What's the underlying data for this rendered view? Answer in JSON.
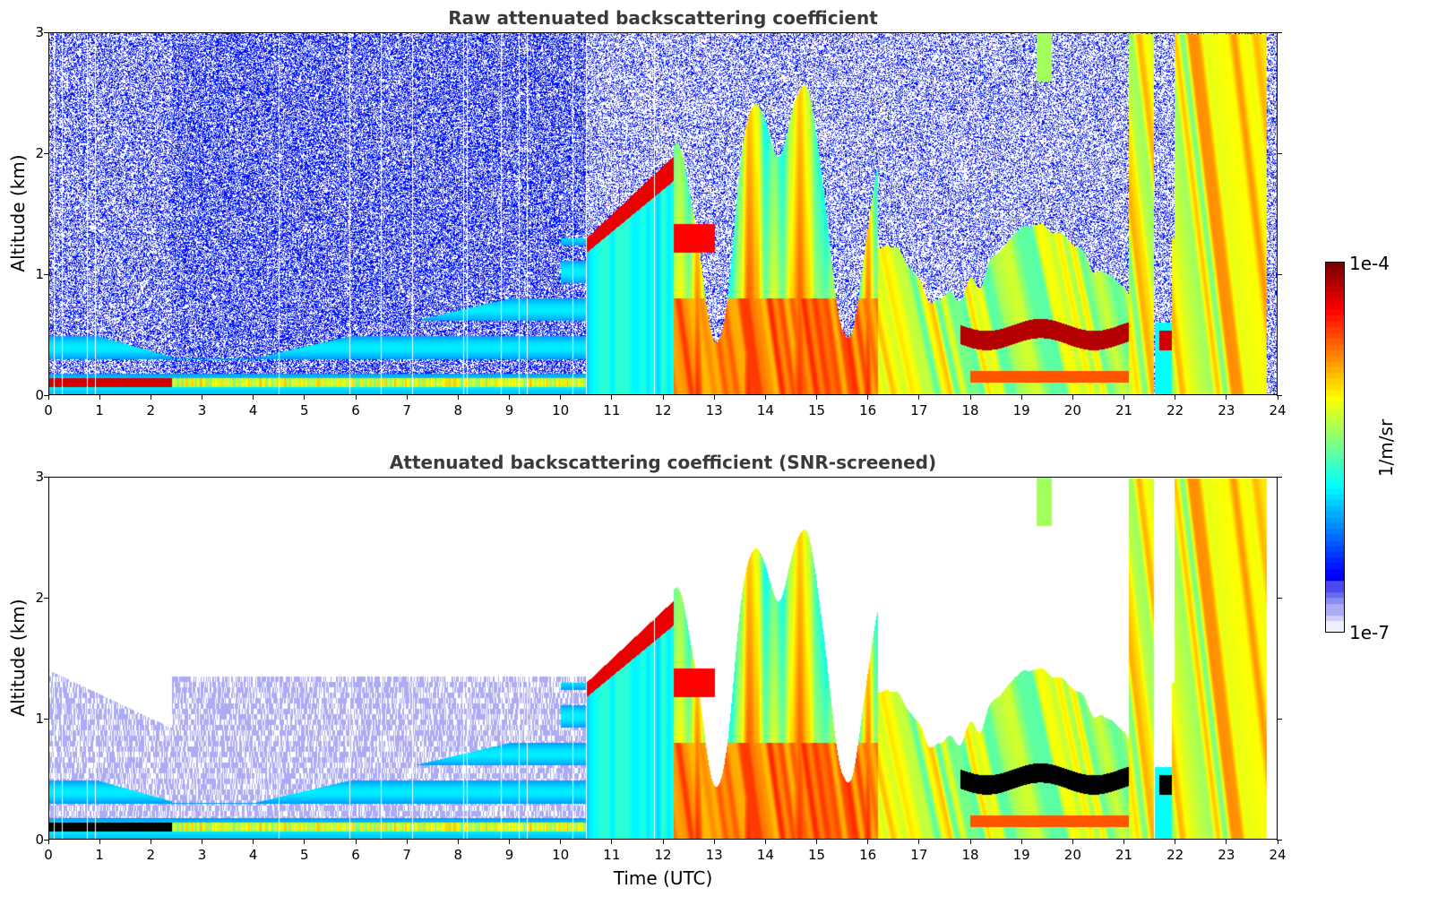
{
  "chart_data": [
    {
      "type": "heatmap",
      "title": "Raw attenuated backscattering coefficient",
      "xlabel": "",
      "ylabel": "Altitude (km)",
      "xlim": [
        0,
        24
      ],
      "ylim": [
        0,
        3
      ],
      "xticks": [
        "0",
        "1",
        "2",
        "3",
        "4",
        "5",
        "6",
        "7",
        "8",
        "9",
        "10",
        "11",
        "12",
        "13",
        "14",
        "15",
        "16",
        "17",
        "18",
        "19",
        "20",
        "21",
        "22",
        "23",
        "24"
      ],
      "yticks": [
        "0",
        "1",
        "2",
        "3"
      ],
      "screened": false
    },
    {
      "type": "heatmap",
      "title": "Attenuated backscattering coefficient (SNR-screened)",
      "xlabel": "Time (UTC)",
      "ylabel": "Altitude (km)",
      "xlim": [
        0,
        24
      ],
      "ylim": [
        0,
        3
      ],
      "xticks": [
        "0",
        "1",
        "2",
        "3",
        "4",
        "5",
        "6",
        "7",
        "8",
        "9",
        "10",
        "11",
        "12",
        "13",
        "14",
        "15",
        "16",
        "17",
        "18",
        "19",
        "20",
        "21",
        "22",
        "23",
        "24"
      ],
      "yticks": [
        "0",
        "1",
        "2",
        "3"
      ],
      "screened": true
    }
  ],
  "colorbar": {
    "colormap": "jet",
    "max_label": "1e-4",
    "min_label": "1e-7",
    "unit": "1/m/sr",
    "log_range": [
      -7,
      -4
    ]
  }
}
